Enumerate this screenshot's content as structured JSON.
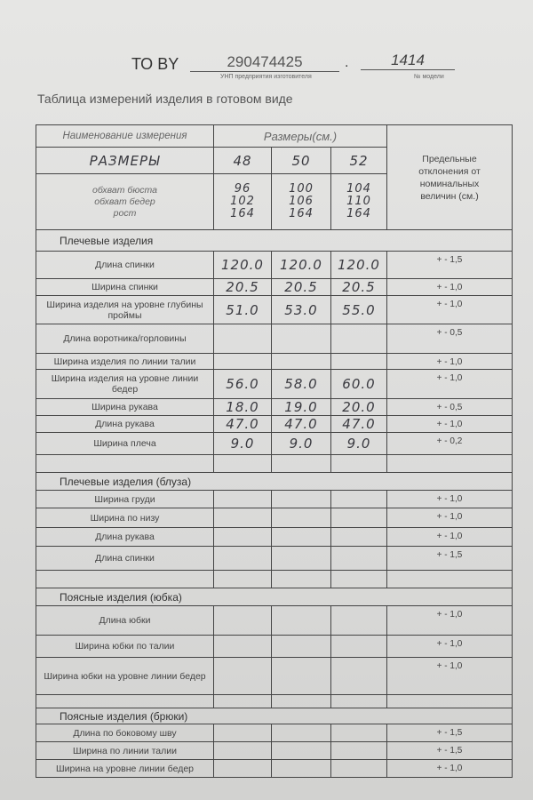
{
  "header": {
    "prefix": "ТО BY",
    "unp": "290474425",
    "unp_caption": "УНП предприятия изготовителя",
    "separator": ".",
    "model": "1414",
    "model_caption": "№ модели"
  },
  "title": "Таблица измерений изделия в готовом виде",
  "table": {
    "col_name": "Наименование измерения",
    "col_sizes": "Размеры(см.)",
    "col_tolerance": "Предельные отклонения от номинальных величин (см.)",
    "sizes_label": "РАЗМЕРЫ",
    "sizes": [
      "48",
      "50",
      "52"
    ],
    "body_measures_label": "обхват бюста\nобхват бедер\nрост",
    "body_measures": [
      "96\n102\n164",
      "100\n106\n164",
      "104\n110\n164"
    ],
    "sections": [
      {
        "title": "Плечевые изделия",
        "rows": [
          {
            "name": "Длина спинки",
            "values": [
              "120.0",
              "120.0",
              "120.0"
            ],
            "tol": "+ - 1,5"
          },
          {
            "name": "Ширина спинки",
            "values": [
              "20.5",
              "20.5",
              "20.5"
            ],
            "tol": "+ - 1,0"
          },
          {
            "name": "Ширина изделия на уровне глубины проймы",
            "values": [
              "51.0",
              "53.0",
              "55.0"
            ],
            "tol": "+ - 1,0"
          },
          {
            "name": "Длина воротника/горловины",
            "values": [
              "",
              "",
              ""
            ],
            "tol": "+ - 0,5"
          },
          {
            "name": "Ширина изделия по линии талии",
            "values": [
              "",
              "",
              ""
            ],
            "tol": "+ - 1,0"
          },
          {
            "name": "Ширина изделия на уровне линии бедер",
            "values": [
              "56.0",
              "58.0",
              "60.0"
            ],
            "tol": "+ - 1,0"
          },
          {
            "name": "Ширина рукава",
            "values": [
              "18.0",
              "19.0",
              "20.0"
            ],
            "tol": "+ - 0,5"
          },
          {
            "name": "Длина рукава",
            "values": [
              "47.0",
              "47.0",
              "47.0"
            ],
            "tol": "+ - 1,0"
          },
          {
            "name": "Ширина плеча",
            "values": [
              "9.0",
              "9.0",
              "9.0"
            ],
            "tol": "+ - 0,2"
          },
          {
            "name": "",
            "values": [
              "",
              "",
              ""
            ],
            "tol": ""
          }
        ]
      },
      {
        "title": "Плечевые изделия (блуза)",
        "rows": [
          {
            "name": "Ширина груди",
            "values": [
              "",
              "",
              ""
            ],
            "tol": "+ - 1,0"
          },
          {
            "name": "Ширина по низу",
            "values": [
              "",
              "",
              ""
            ],
            "tol": "+ - 1,0"
          },
          {
            "name": "Длина рукава",
            "values": [
              "",
              "",
              ""
            ],
            "tol": "+ - 1,0"
          },
          {
            "name": "Длина спинки",
            "values": [
              "",
              "",
              ""
            ],
            "tol": "+ - 1,5"
          },
          {
            "name": "",
            "values": [
              "",
              "",
              ""
            ],
            "tol": ""
          }
        ]
      },
      {
        "title": "Поясные изделия (юбка)",
        "rows": [
          {
            "name": "Длина юбки",
            "values": [
              "",
              "",
              ""
            ],
            "tol": "+ - 1,0"
          },
          {
            "name": "Ширина юбки по талии",
            "values": [
              "",
              "",
              ""
            ],
            "tol": "+ - 1,0"
          },
          {
            "name": "Ширина юбки на уровне линии бедер",
            "values": [
              "",
              "",
              ""
            ],
            "tol": "+ - 1,0"
          },
          {
            "name": "",
            "values": [
              "",
              "",
              ""
            ],
            "tol": ""
          }
        ]
      },
      {
        "title": "Поясные изделия (брюки)",
        "rows": [
          {
            "name": "Длина по боковому шву",
            "values": [
              "",
              "",
              ""
            ],
            "tol": "+ - 1,5"
          },
          {
            "name": "Ширина по линии талии",
            "values": [
              "",
              "",
              ""
            ],
            "tol": "+ - 1,5"
          },
          {
            "name": "Ширина на уровне линии бедер",
            "values": [
              "",
              "",
              ""
            ],
            "tol": "+ - 1,0"
          }
        ]
      }
    ]
  }
}
